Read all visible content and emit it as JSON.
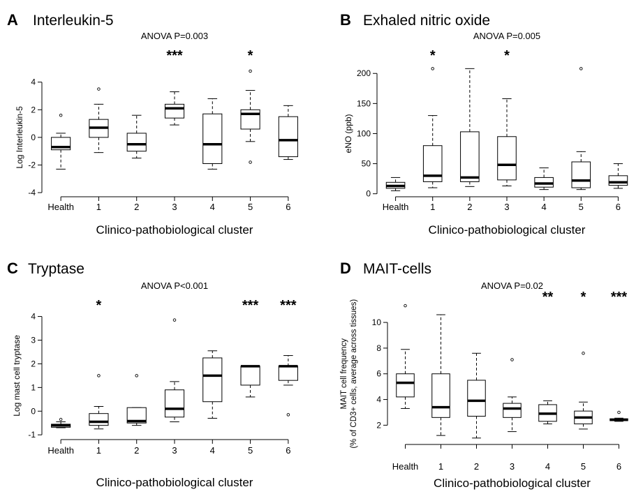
{
  "colors": {
    "ink": "#000000",
    "background": "#ffffff"
  },
  "chart_data": [
    {
      "type": "boxplot",
      "panel_letter": "A",
      "title": "Interleukin-5",
      "subtitle": "ANOVA  P=0.003",
      "xlabel": "Clinico-pathobiological cluster",
      "ylabel": "Log Interleukin-5",
      "ylim": [
        -4.3,
        5.5
      ],
      "yticks": [
        -4,
        -2,
        0,
        2,
        4
      ],
      "categories": [
        "Health",
        "1",
        "2",
        "3",
        "4",
        "5",
        "6"
      ],
      "significance": [
        "",
        "",
        "",
        "***",
        "",
        "*",
        ""
      ],
      "boxes": [
        {
          "whisker_low": -2.3,
          "q1": -0.9,
          "median": -0.7,
          "q3": 0.0,
          "whisker_high": 0.3,
          "outliers": [
            1.6
          ]
        },
        {
          "whisker_low": -1.1,
          "q1": 0.0,
          "median": 0.7,
          "q3": 1.3,
          "whisker_high": 2.4,
          "outliers": [
            3.5
          ]
        },
        {
          "whisker_low": -1.5,
          "q1": -1.0,
          "median": -0.5,
          "q3": 0.3,
          "whisker_high": 1.6,
          "outliers": []
        },
        {
          "whisker_low": 0.9,
          "q1": 1.4,
          "median": 2.1,
          "q3": 2.4,
          "whisker_high": 3.3,
          "outliers": []
        },
        {
          "whisker_low": -2.3,
          "q1": -1.9,
          "median": -0.5,
          "q3": 1.7,
          "whisker_high": 2.8,
          "outliers": []
        },
        {
          "whisker_low": -0.3,
          "q1": 0.6,
          "median": 1.7,
          "q3": 2.0,
          "whisker_high": 3.4,
          "outliers": [
            4.8,
            -1.8
          ]
        },
        {
          "whisker_low": -1.6,
          "q1": -1.4,
          "median": -0.2,
          "q3": 1.5,
          "whisker_high": 2.3,
          "outliers": []
        }
      ]
    },
    {
      "type": "boxplot",
      "panel_letter": "B",
      "title": "Exhaled nitric oxide",
      "subtitle": "ANOVA  P=0.005",
      "xlabel": "Clinico-pathobiological cluster",
      "ylabel": "eNO (ppb)",
      "ylim": [
        -5,
        220
      ],
      "yticks": [
        0,
        50,
        100,
        150,
        200
      ],
      "categories": [
        "Health",
        "1",
        "2",
        "3",
        "4",
        "5",
        "6"
      ],
      "significance": [
        "",
        "*",
        "",
        "*",
        "",
        "",
        ""
      ],
      "boxes": [
        {
          "whisker_low": 5,
          "q1": 9,
          "median": 13,
          "q3": 19,
          "whisker_high": 27,
          "outliers": []
        },
        {
          "whisker_low": 10,
          "q1": 20,
          "median": 30,
          "q3": 80,
          "whisker_high": 130,
          "outliers": [
            208
          ]
        },
        {
          "whisker_low": 12,
          "q1": 20,
          "median": 27,
          "q3": 103,
          "whisker_high": 208,
          "outliers": []
        },
        {
          "whisker_low": 13,
          "q1": 23,
          "median": 48,
          "q3": 95,
          "whisker_high": 158,
          "outliers": []
        },
        {
          "whisker_low": 7,
          "q1": 11,
          "median": 17,
          "q3": 27,
          "whisker_high": 43,
          "outliers": []
        },
        {
          "whisker_low": 7,
          "q1": 10,
          "median": 22,
          "q3": 53,
          "whisker_high": 70,
          "outliers": [
            208
          ]
        },
        {
          "whisker_low": 9,
          "q1": 14,
          "median": 19,
          "q3": 30,
          "whisker_high": 50,
          "outliers": []
        }
      ]
    },
    {
      "type": "boxplot",
      "panel_letter": "C",
      "title": "Tryptase",
      "subtitle": "ANOVA  P<0.001",
      "xlabel": "Clinico-pathobiological cluster",
      "ylabel": "Log mast cell tryptase",
      "ylim": [
        -1.2,
        4.4
      ],
      "yticks": [
        -1,
        0,
        1,
        2,
        3,
        4
      ],
      "categories": [
        "Health",
        "1",
        "2",
        "3",
        "4",
        "5",
        "6"
      ],
      "significance": [
        "",
        "*",
        "",
        "",
        "",
        "***",
        "***"
      ],
      "boxes": [
        {
          "whisker_low": -0.7,
          "q1": -0.68,
          "median": -0.6,
          "q3": -0.55,
          "whisker_high": -0.45,
          "outliers": [
            -0.35
          ]
        },
        {
          "whisker_low": -0.75,
          "q1": -0.6,
          "median": -0.45,
          "q3": -0.1,
          "whisker_high": 0.2,
          "outliers": [
            1.5
          ]
        },
        {
          "whisker_low": -0.6,
          "q1": -0.5,
          "median": -0.42,
          "q3": 0.15,
          "whisker_high": 0.15,
          "outliers": [
            1.5
          ]
        },
        {
          "whisker_low": -0.45,
          "q1": -0.25,
          "median": 0.1,
          "q3": 0.9,
          "whisker_high": 1.25,
          "outliers": [
            3.85
          ]
        },
        {
          "whisker_low": -0.3,
          "q1": 0.4,
          "median": 1.5,
          "q3": 2.25,
          "whisker_high": 2.55,
          "outliers": []
        },
        {
          "whisker_low": 0.6,
          "q1": 1.1,
          "median": 1.9,
          "q3": 1.9,
          "whisker_high": 1.9,
          "outliers": []
        },
        {
          "whisker_low": 1.1,
          "q1": 1.3,
          "median": 1.9,
          "q3": 1.9,
          "whisker_high": 2.35,
          "outliers": [
            -0.15
          ]
        }
      ]
    },
    {
      "type": "boxplot",
      "panel_letter": "D",
      "title": "MAIT-cells",
      "subtitle": "ANOVA  P=0.02",
      "xlabel": "Clinico-pathobiological cluster",
      "ylabel": "MAIT cell frequency",
      "ylabel2": "(% of CD3+ cells, average across tissues)",
      "ylim": [
        0.5,
        11.2
      ],
      "yticks": [
        2,
        4,
        6,
        8,
        10
      ],
      "categories": [
        "Health",
        "1",
        "2",
        "3",
        "4",
        "5",
        "6"
      ],
      "significance": [
        "",
        "",
        "",
        "",
        "**",
        "*",
        "***"
      ],
      "boxes": [
        {
          "whisker_low": 3.3,
          "q1": 4.2,
          "median": 5.3,
          "q3": 6.0,
          "whisker_high": 7.9,
          "outliers": [
            11.3
          ]
        },
        {
          "whisker_low": 1.2,
          "q1": 2.6,
          "median": 3.4,
          "q3": 6.0,
          "whisker_high": 10.6,
          "outliers": []
        },
        {
          "whisker_low": 1.0,
          "q1": 2.7,
          "median": 3.9,
          "q3": 5.5,
          "whisker_high": 7.6,
          "outliers": []
        },
        {
          "whisker_low": 1.5,
          "q1": 2.6,
          "median": 3.3,
          "q3": 3.7,
          "whisker_high": 4.2,
          "outliers": [
            7.1
          ]
        },
        {
          "whisker_low": 2.1,
          "q1": 2.3,
          "median": 2.9,
          "q3": 3.6,
          "whisker_high": 3.9,
          "outliers": []
        },
        {
          "whisker_low": 1.7,
          "q1": 2.1,
          "median": 2.6,
          "q3": 3.1,
          "whisker_high": 3.8,
          "outliers": [
            7.6
          ]
        },
        {
          "whisker_low": 2.3,
          "q1": 2.35,
          "median": 2.42,
          "q3": 2.5,
          "whisker_high": 2.55,
          "outliers": [
            3.0
          ]
        }
      ]
    }
  ]
}
